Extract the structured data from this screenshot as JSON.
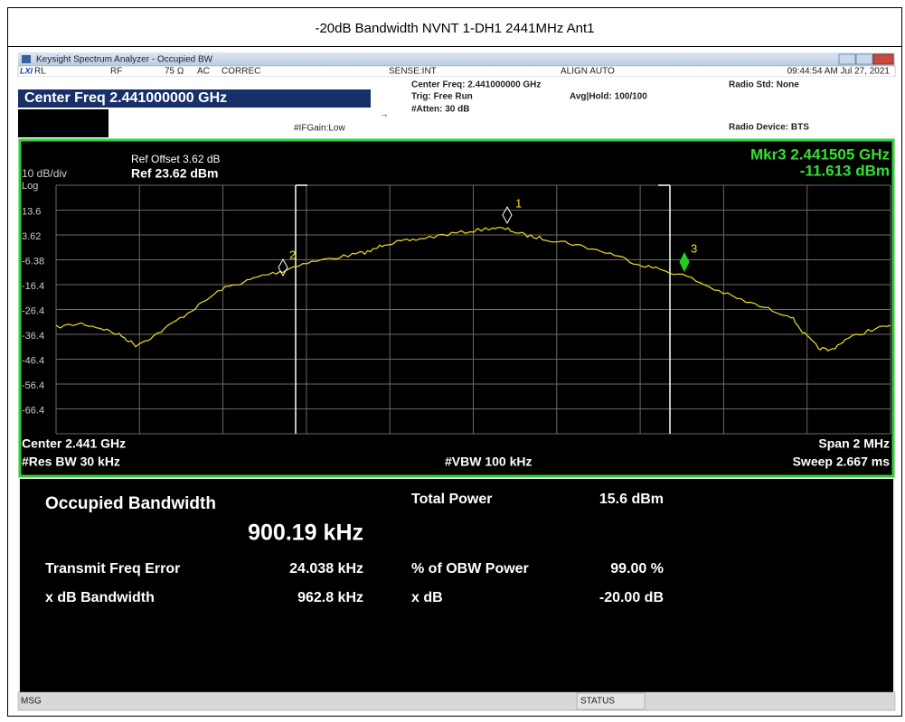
{
  "report": {
    "title": "-20dB Bandwidth NVNT 1-DH1 2441MHz Ant1"
  },
  "window": {
    "title": "Keysight Spectrum Analyzer - Occupied BW"
  },
  "status_row": {
    "rl": "RL",
    "rf": "RF",
    "impedance": "75 Ω",
    "coupling": "AC",
    "correc": "CORREC",
    "sense": "SENSE:INT",
    "align": "ALIGN AUTO",
    "timestamp": "09:44:54 AM Jul 27, 2021"
  },
  "settings": {
    "center_freq_button": "Center Freq 2.441000000 GHz",
    "center_freq": "Center Freq: 2.441000000 GHz",
    "trig": "Trig: Free Run",
    "avg_hold": "Avg|Hold: 100/100",
    "atten": "#Atten: 30 dB",
    "if_gain": "#IFGain:Low",
    "radio_std": "Radio Std: None",
    "radio_device": "Radio Device: BTS"
  },
  "graph": {
    "ref_offset": "Ref Offset 3.62 dB",
    "ref_level": "Ref 23.62 dBm",
    "scale": "10 dB/div",
    "scale_type": "Log",
    "marker_readout_freq": "Mkr3  2.441505 GHz",
    "marker_readout_level": "-11.613 dBm",
    "y_labels": [
      "13.6",
      "3.62",
      "-6.38",
      "-16.4",
      "-26.4",
      "-36.4",
      "-46.4",
      "-56.4",
      "-66.4"
    ],
    "markers": [
      "1",
      "2",
      "3"
    ],
    "center": "Center  2.441 GHz",
    "res_bw": "#Res BW  30 kHz",
    "vbw": "#VBW  100 kHz",
    "span": "Span 2 MHz",
    "sweep": "Sweep  2.667 ms"
  },
  "results": {
    "occupied_bw_label": "Occupied Bandwidth",
    "occupied_bw_value": "900.19 kHz",
    "total_power_label": "Total Power",
    "total_power_value": "15.6 dBm",
    "freq_error_label": "Transmit Freq Error",
    "freq_error_value": "24.038 kHz",
    "obw_power_label": "% of OBW Power",
    "obw_power_value": "99.00 %",
    "xdb_bw_label": "x dB Bandwidth",
    "xdb_bw_value": "962.8 kHz",
    "xdb_label": "x dB",
    "xdb_value": "-20.00 dB"
  },
  "footer": {
    "msg": "MSG",
    "status": "STATUS"
  }
}
